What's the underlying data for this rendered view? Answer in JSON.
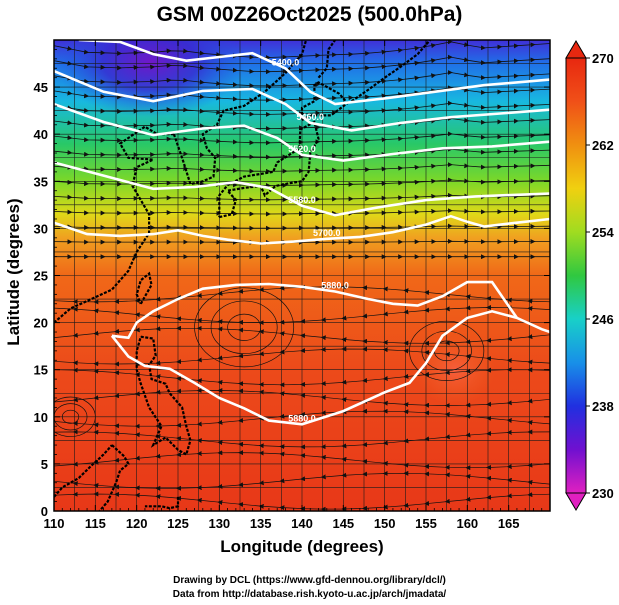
{
  "title": "GSM 00Z26Oct2025 (500.0hPa)",
  "xlabel": "Longitude (degrees)",
  "ylabel": "Latitude  (degrees)",
  "credits": {
    "line1": "Drawing by DCL (https://www.gfd-dennou.org/library/dcl/)",
    "line2": "Data from http://database.rish.kyoto-u.ac.jp/arch/jmadata/"
  },
  "chart_data": {
    "type": "heatmap",
    "title": "GSM 00Z26Oct2025 (500.0hPa)",
    "xlabel": "Longitude (degrees)",
    "ylabel": "Latitude  (degrees)",
    "xlim": [
      110,
      170
    ],
    "ylim": [
      0,
      50
    ],
    "x_ticks": [
      110,
      115,
      120,
      125,
      130,
      135,
      140,
      145,
      150,
      155,
      160,
      165
    ],
    "y_ticks": [
      0,
      5,
      10,
      15,
      20,
      25,
      30,
      35,
      40,
      45
    ],
    "grid": true,
    "colorbar": {
      "min": 230,
      "max": 270,
      "ticks": [
        230,
        238,
        246,
        254,
        262,
        270
      ],
      "colors": [
        "#e020c0",
        "#7010d0",
        "#2030e0",
        "#1890e8",
        "#18d0c8",
        "#30c840",
        "#a0dc20",
        "#f0d010",
        "#f09010",
        "#f05018",
        "#e82810"
      ]
    },
    "height_contours": [
      {
        "label": "5400.0",
        "points": [
          [
            113,
            50
          ],
          [
            118,
            49.8
          ],
          [
            122,
            48.5
          ],
          [
            126,
            47.8
          ],
          [
            130,
            48.2
          ],
          [
            134,
            48.6
          ],
          [
            138,
            47
          ],
          [
            141,
            44.5
          ],
          [
            144,
            43.2
          ],
          [
            150,
            43.8
          ],
          [
            156,
            44.5
          ],
          [
            162,
            45.2
          ],
          [
            170,
            45.8
          ]
        ]
      },
      {
        "label": "5460.0",
        "points": [
          [
            110,
            46.7
          ],
          [
            116,
            44.5
          ],
          [
            122,
            43.5
          ],
          [
            128,
            44.6
          ],
          [
            134,
            44.8
          ],
          [
            138,
            43.2
          ],
          [
            141,
            41.2
          ],
          [
            146,
            40.4
          ],
          [
            152,
            41.2
          ],
          [
            158,
            41.8
          ],
          [
            164,
            42.2
          ],
          [
            170,
            42.6
          ]
        ]
      },
      {
        "label": "5520.0",
        "points": [
          [
            110,
            43.2
          ],
          [
            116,
            41.3
          ],
          [
            122,
            39.9
          ],
          [
            128,
            40.6
          ],
          [
            133,
            40.9
          ],
          [
            137,
            39.6
          ],
          [
            140,
            37.8
          ],
          [
            145,
            37.2
          ],
          [
            151,
            37.9
          ],
          [
            157,
            38.5
          ],
          [
            163,
            38.7
          ],
          [
            170,
            39.2
          ]
        ]
      },
      {
        "label": "5580.0",
        "points": [
          [
            110,
            37
          ],
          [
            116,
            35.6
          ],
          [
            122,
            34.2
          ],
          [
            127,
            34.4
          ],
          [
            132,
            34.9
          ],
          [
            136,
            34.3
          ],
          [
            140,
            32.4
          ],
          [
            144,
            31.4
          ],
          [
            149,
            32.2
          ],
          [
            155,
            33
          ],
          [
            161,
            33.4
          ],
          [
            170,
            33.7
          ]
        ]
      },
      {
        "label": "5700.0",
        "points": [
          [
            110,
            30.6
          ],
          [
            114,
            29.4
          ],
          [
            118,
            29.2
          ],
          [
            122,
            29.4
          ],
          [
            125,
            29.8
          ],
          [
            128,
            29.2
          ],
          [
            131,
            28.8
          ],
          [
            135,
            28.4
          ],
          [
            139,
            28.6
          ],
          [
            143,
            28.9
          ],
          [
            147,
            29.1
          ],
          [
            151,
            29.6
          ],
          [
            155,
            30.4
          ],
          [
            158,
            31.3
          ],
          [
            160,
            30.7
          ],
          [
            162,
            30.2
          ],
          [
            166,
            30.6
          ],
          [
            170,
            31
          ]
        ]
      },
      {
        "label": "5880.0",
        "points": [
          [
            117,
            18.6
          ],
          [
            119,
            18.4
          ],
          [
            120,
            20
          ],
          [
            122,
            21.2
          ],
          [
            125,
            22.5
          ],
          [
            128,
            23.6
          ],
          [
            132,
            24
          ],
          [
            136,
            24.1
          ],
          [
            140,
            23.8
          ],
          [
            144,
            23.3
          ],
          [
            148,
            22.5
          ],
          [
            151,
            22
          ],
          [
            154,
            21.8
          ],
          [
            157,
            22.8
          ],
          [
            160,
            24.3
          ],
          [
            163,
            24.3
          ],
          [
            166,
            20.5
          ],
          [
            169,
            19.3
          ],
          [
            170,
            19
          ]
        ]
      },
      {
        "label": "5880.0",
        "points": [
          [
            117,
            18.6
          ],
          [
            119,
            16.4
          ],
          [
            121,
            15.4
          ],
          [
            124,
            15.1
          ],
          [
            127,
            13.6
          ],
          [
            130,
            12
          ],
          [
            133,
            10.9
          ],
          [
            136,
            9.6
          ],
          [
            140,
            9.2
          ],
          [
            145,
            10.6
          ],
          [
            150,
            12.6
          ],
          [
            153,
            13.6
          ],
          [
            155,
            15.7
          ],
          [
            157,
            18.6
          ],
          [
            160,
            20.5
          ],
          [
            163,
            21.2
          ],
          [
            166,
            20.5
          ]
        ]
      }
    ],
    "coastline_regions": [
      "China coast",
      "Korea",
      "Japan",
      "Sakhalin",
      "Taiwan",
      "Philippines",
      "Borneo",
      "Kuril Islands"
    ]
  }
}
